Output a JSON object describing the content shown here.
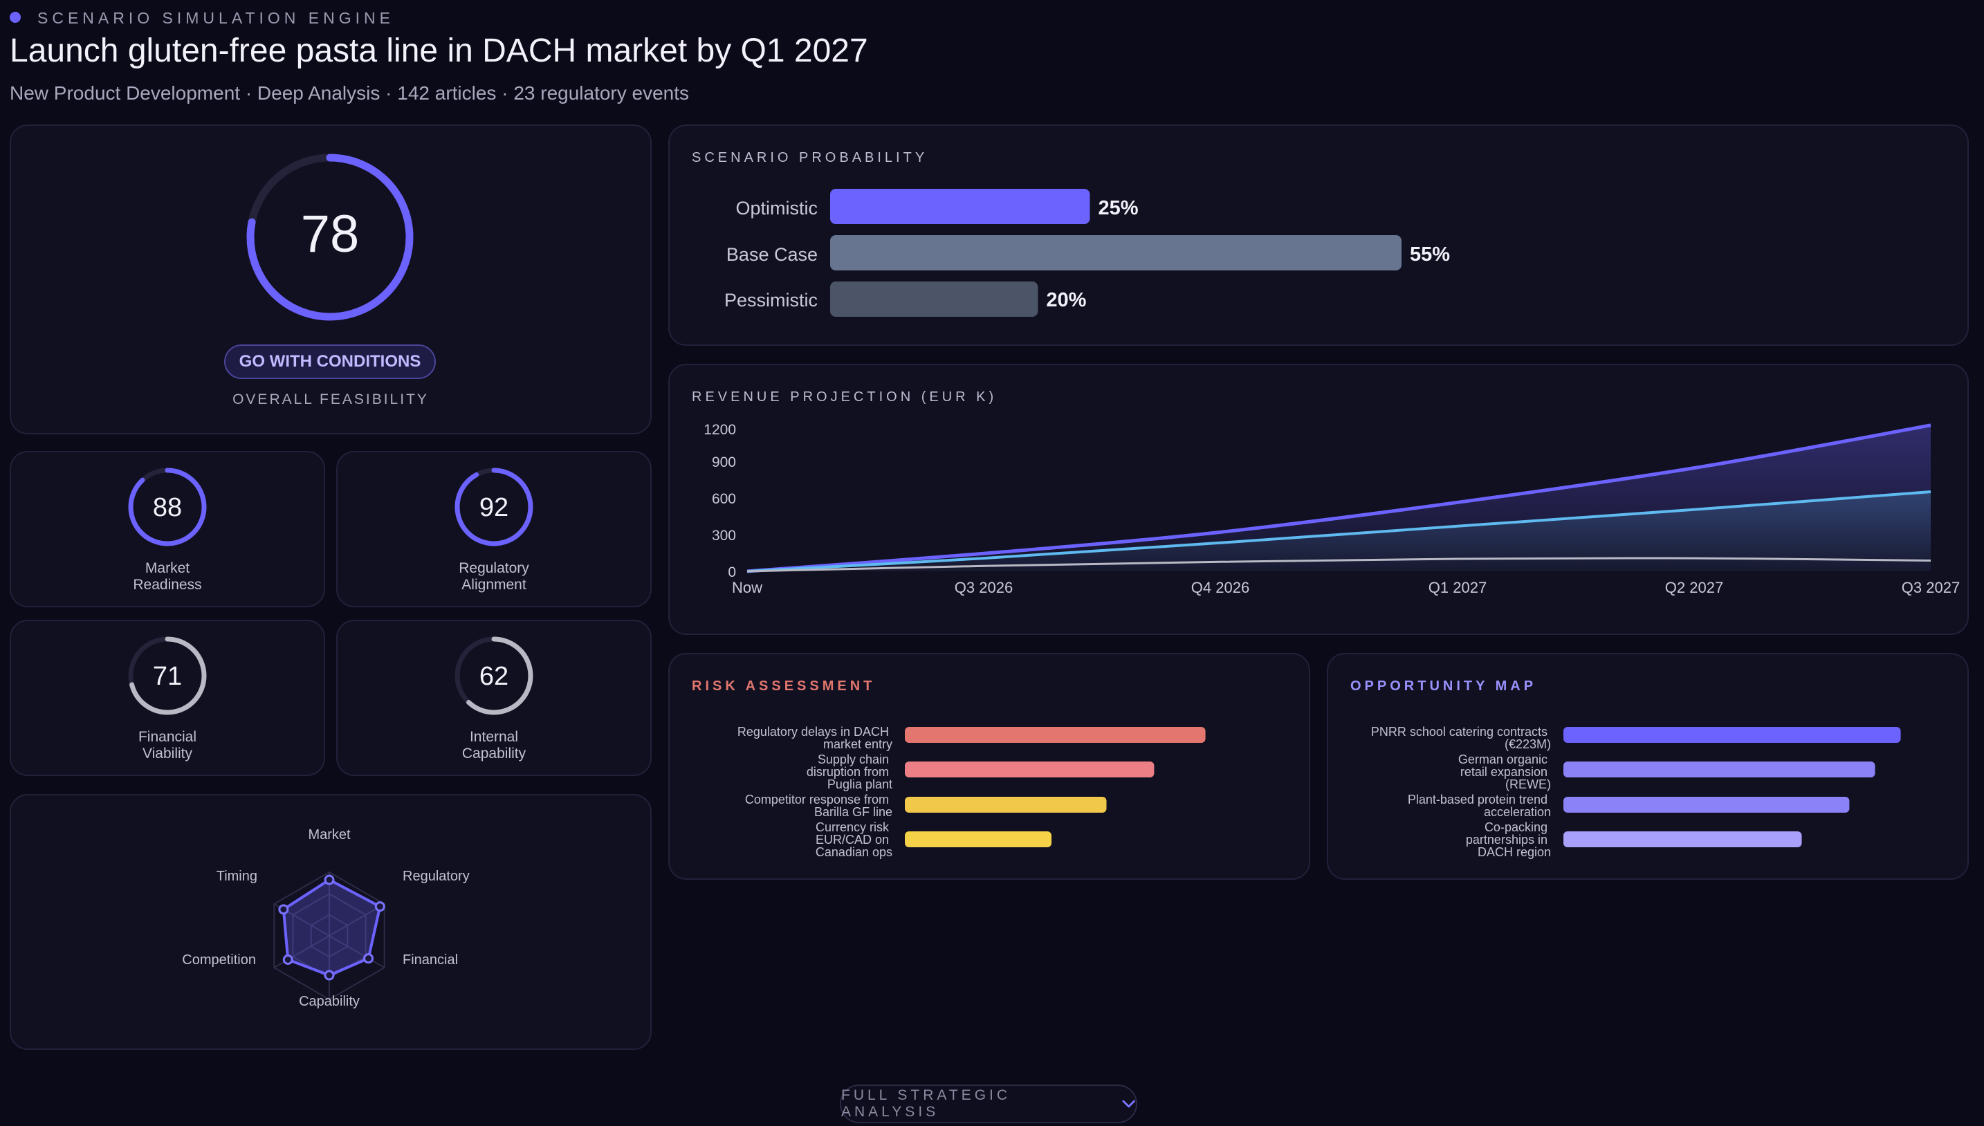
{
  "header": {
    "eyebrow": "SCENARIO SIMULATION ENGINE",
    "title": "Launch gluten-free pasta line in DACH market by Q1 2027",
    "subtitle": "New Product Development · Deep Analysis · 142 articles · 23 regulatory events"
  },
  "colors": {
    "accent": "#6c63ff",
    "base": "#687590",
    "pessimistic": "#4b5567",
    "risk_high": "#e3766e",
    "risk_mid": "#ec7f86",
    "risk_amber": "#f2c84b",
    "risk_yellow": "#f5d247",
    "line_cyan": "#5fbaf0",
    "line_grey": "#b9b9c6"
  },
  "feasibility": {
    "score": "78",
    "verdict": "GO WITH CONDITIONS",
    "label": "OVERALL FEASIBILITY",
    "value": 78
  },
  "subscores": [
    {
      "score": "88",
      "label_line1": "Market",
      "label_line2": "Readiness",
      "value": 88,
      "color": "#6c63ff"
    },
    {
      "score": "92",
      "label_line1": "Regulatory",
      "label_line2": "Alignment",
      "value": 92,
      "color": "#6c63ff"
    },
    {
      "score": "71",
      "label_line1": "Financial",
      "label_line2": "Viability",
      "value": 71,
      "color": "#b9b9c6"
    },
    {
      "score": "62",
      "label_line1": "Internal",
      "label_line2": "Capability",
      "value": 62,
      "color": "#b9b9c6"
    }
  ],
  "radar": {
    "axes": [
      "Market",
      "Regulatory",
      "Financial",
      "Capability",
      "Competition",
      "Timing"
    ],
    "values": [
      0.88,
      0.92,
      0.71,
      0.62,
      0.75,
      0.83
    ]
  },
  "probability": {
    "title": "SCENARIO PROBABILITY",
    "items": [
      {
        "label": "Optimistic",
        "pct": "25%",
        "value": 25,
        "color": "#6c63ff"
      },
      {
        "label": "Base Case",
        "pct": "55%",
        "value": 55,
        "color": "#687590"
      },
      {
        "label": "Pessimistic",
        "pct": "20%",
        "value": 20,
        "color": "#4b5567"
      }
    ]
  },
  "revenue": {
    "title": "REVENUE PROJECTION (EUR K)",
    "yticks": [
      "1200",
      "900",
      "600",
      "300",
      "0"
    ],
    "xticks": [
      "Now",
      "Q3 2026",
      "Q4 2026",
      "Q1 2027",
      "Q2 2027",
      "Q3 2027"
    ]
  },
  "chart_data": {
    "type": "area",
    "title": "REVENUE PROJECTION (EUR K)",
    "x": [
      "Now",
      "Q3 2026",
      "Q4 2026",
      "Q1 2027",
      "Q2 2027",
      "Q3 2027"
    ],
    "ylim": [
      0,
      1200
    ],
    "series": [
      {
        "values": [
          0,
          150,
          330,
          580,
          870,
          1230
        ],
        "color": "#6c63ff"
      },
      {
        "values": [
          0,
          110,
          240,
          380,
          520,
          670
        ],
        "color": "#5fbaf0"
      },
      {
        "values": [
          0,
          45,
          80,
          105,
          110,
          90
        ],
        "color": "#b9b9c6"
      }
    ]
  },
  "risk": {
    "title": "RISK ASSESSMENT",
    "items": [
      {
        "lines": [
          "Regulatory delays in DACH",
          "market entry"
        ],
        "value": 0.82,
        "color": "#e3766e"
      },
      {
        "lines": [
          "Supply chain",
          "disruption from",
          "Puglia plant"
        ],
        "value": 0.68,
        "color": "#ec7f86"
      },
      {
        "lines": [
          "Competitor response from",
          "Barilla GF line"
        ],
        "value": 0.55,
        "color": "#f2c84b"
      },
      {
        "lines": [
          "Currency risk",
          "EUR/CAD on",
          "Canadian ops"
        ],
        "value": 0.4,
        "color": "#f5d247"
      }
    ]
  },
  "opportunity": {
    "title": "OPPORTUNITY MAP",
    "items": [
      {
        "lines": [
          "PNRR school catering contracts",
          "(€223M)"
        ],
        "value": 0.92,
        "color": "#6c63ff"
      },
      {
        "lines": [
          "German organic",
          "retail expansion",
          "(REWE)"
        ],
        "value": 0.85,
        "color": "#8b82f7"
      },
      {
        "lines": [
          "Plant-based protein trend",
          "acceleration"
        ],
        "value": 0.78,
        "color": "#8b82f7"
      },
      {
        "lines": [
          "Co-packing",
          "partnerships in",
          "DACH region"
        ],
        "value": 0.65,
        "color": "#a8a0fb"
      }
    ]
  },
  "footer": {
    "label": "FULL STRATEGIC ANALYSIS",
    "icon": "chevron-down-icon"
  }
}
